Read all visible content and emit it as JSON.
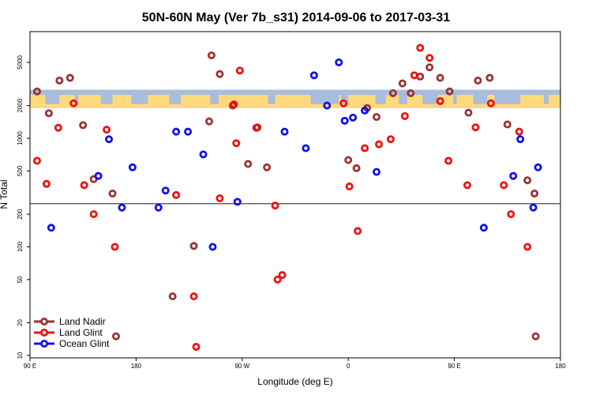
{
  "chart_data": {
    "type": "scatter",
    "title": "50N-60N May (Ver 7b_s31)   2014-09-06 to 2017-03-31",
    "xlabel": "Longitude (deg E)",
    "ylabel": "N Total",
    "x_ticks": [
      {
        "value": 90,
        "label": "90 E"
      },
      {
        "value": 180,
        "label": "180"
      },
      {
        "value": 270,
        "label": "90 W"
      },
      {
        "value": 360,
        "label": "0"
      },
      {
        "value": 450,
        "label": "90 E"
      },
      {
        "value": 540,
        "label": "180"
      }
    ],
    "y_ticks": [
      10,
      20,
      50,
      100,
      200,
      500,
      1000,
      2000,
      5000
    ],
    "xlim": [
      90,
      540
    ],
    "ylim": [
      9.5,
      9600
    ],
    "y_scale": "log",
    "reference_line": 250,
    "map_strip": {
      "y_range": [
        1900,
        2800
      ],
      "ocean_color": "#a8bddd",
      "land_color": "#ffd97a"
    },
    "legend_position": "bottom-left",
    "series": [
      {
        "name": "Land Nadir",
        "color": "#993333",
        "points": [
          [
            96,
            2700
          ],
          [
            106,
            1700
          ],
          [
            115,
            3400
          ],
          [
            124,
            3600
          ],
          [
            135,
            1320
          ],
          [
            144,
            420
          ],
          [
            160,
            310
          ],
          [
            163,
            15
          ],
          [
            211,
            35
          ],
          [
            229,
            102
          ],
          [
            242,
            1430
          ],
          [
            244,
            5800
          ],
          [
            251,
            3900
          ],
          [
            262,
            2000
          ],
          [
            275,
            580
          ],
          [
            282,
            1250
          ],
          [
            291,
            540
          ],
          [
            360,
            630
          ],
          [
            367,
            530
          ],
          [
            376,
            1900
          ],
          [
            384,
            1570
          ],
          [
            398,
            2600
          ],
          [
            406,
            3200
          ],
          [
            413,
            2600
          ],
          [
            421,
            3700
          ],
          [
            429,
            4500
          ],
          [
            438,
            3600
          ],
          [
            446,
            2700
          ],
          [
            462,
            1720
          ],
          [
            470,
            3400
          ],
          [
            480,
            3600
          ],
          [
            495,
            1340
          ],
          [
            512,
            410
          ],
          [
            518,
            310
          ],
          [
            519,
            15
          ]
        ]
      },
      {
        "name": "Land Glint",
        "color": "#ee1111",
        "points": [
          [
            96,
            620
          ],
          [
            104,
            380
          ],
          [
            114,
            1250
          ],
          [
            127,
            2100
          ],
          [
            136,
            370
          ],
          [
            144,
            200
          ],
          [
            155,
            1200
          ],
          [
            162,
            100
          ],
          [
            214,
            300
          ],
          [
            229,
            35
          ],
          [
            231,
            12
          ],
          [
            251,
            280
          ],
          [
            263,
            2050
          ],
          [
            265,
            900
          ],
          [
            268,
            4200
          ],
          [
            283,
            1260
          ],
          [
            298,
            240
          ],
          [
            300,
            50
          ],
          [
            304,
            55
          ],
          [
            356,
            2100
          ],
          [
            361,
            360
          ],
          [
            368,
            140
          ],
          [
            374,
            810
          ],
          [
            386,
            880
          ],
          [
            396,
            980
          ],
          [
            408,
            1600
          ],
          [
            416,
            3800
          ],
          [
            421,
            6800
          ],
          [
            429,
            5500
          ],
          [
            438,
            2200
          ],
          [
            445,
            620
          ],
          [
            461,
            370
          ],
          [
            468,
            1260
          ],
          [
            481,
            2100
          ],
          [
            492,
            370
          ],
          [
            498,
            200
          ],
          [
            505,
            1150
          ],
          [
            512,
            100
          ]
        ]
      },
      {
        "name": "Ocean Glint",
        "color": "#1111ee",
        "points": [
          [
            108,
            150
          ],
          [
            148,
            450
          ],
          [
            157,
            980
          ],
          [
            168,
            230
          ],
          [
            177,
            540
          ],
          [
            199,
            230
          ],
          [
            205,
            330
          ],
          [
            214,
            1150
          ],
          [
            224,
            1150
          ],
          [
            237,
            710
          ],
          [
            245,
            100
          ],
          [
            266,
            260
          ],
          [
            306,
            1150
          ],
          [
            324,
            810
          ],
          [
            331,
            3800
          ],
          [
            342,
            2000
          ],
          [
            352,
            5000
          ],
          [
            357,
            1450
          ],
          [
            364,
            1550
          ],
          [
            374,
            1800
          ],
          [
            384,
            490
          ],
          [
            475,
            150
          ],
          [
            500,
            450
          ],
          [
            506,
            980
          ],
          [
            517,
            230
          ],
          [
            521,
            540
          ]
        ]
      }
    ]
  }
}
